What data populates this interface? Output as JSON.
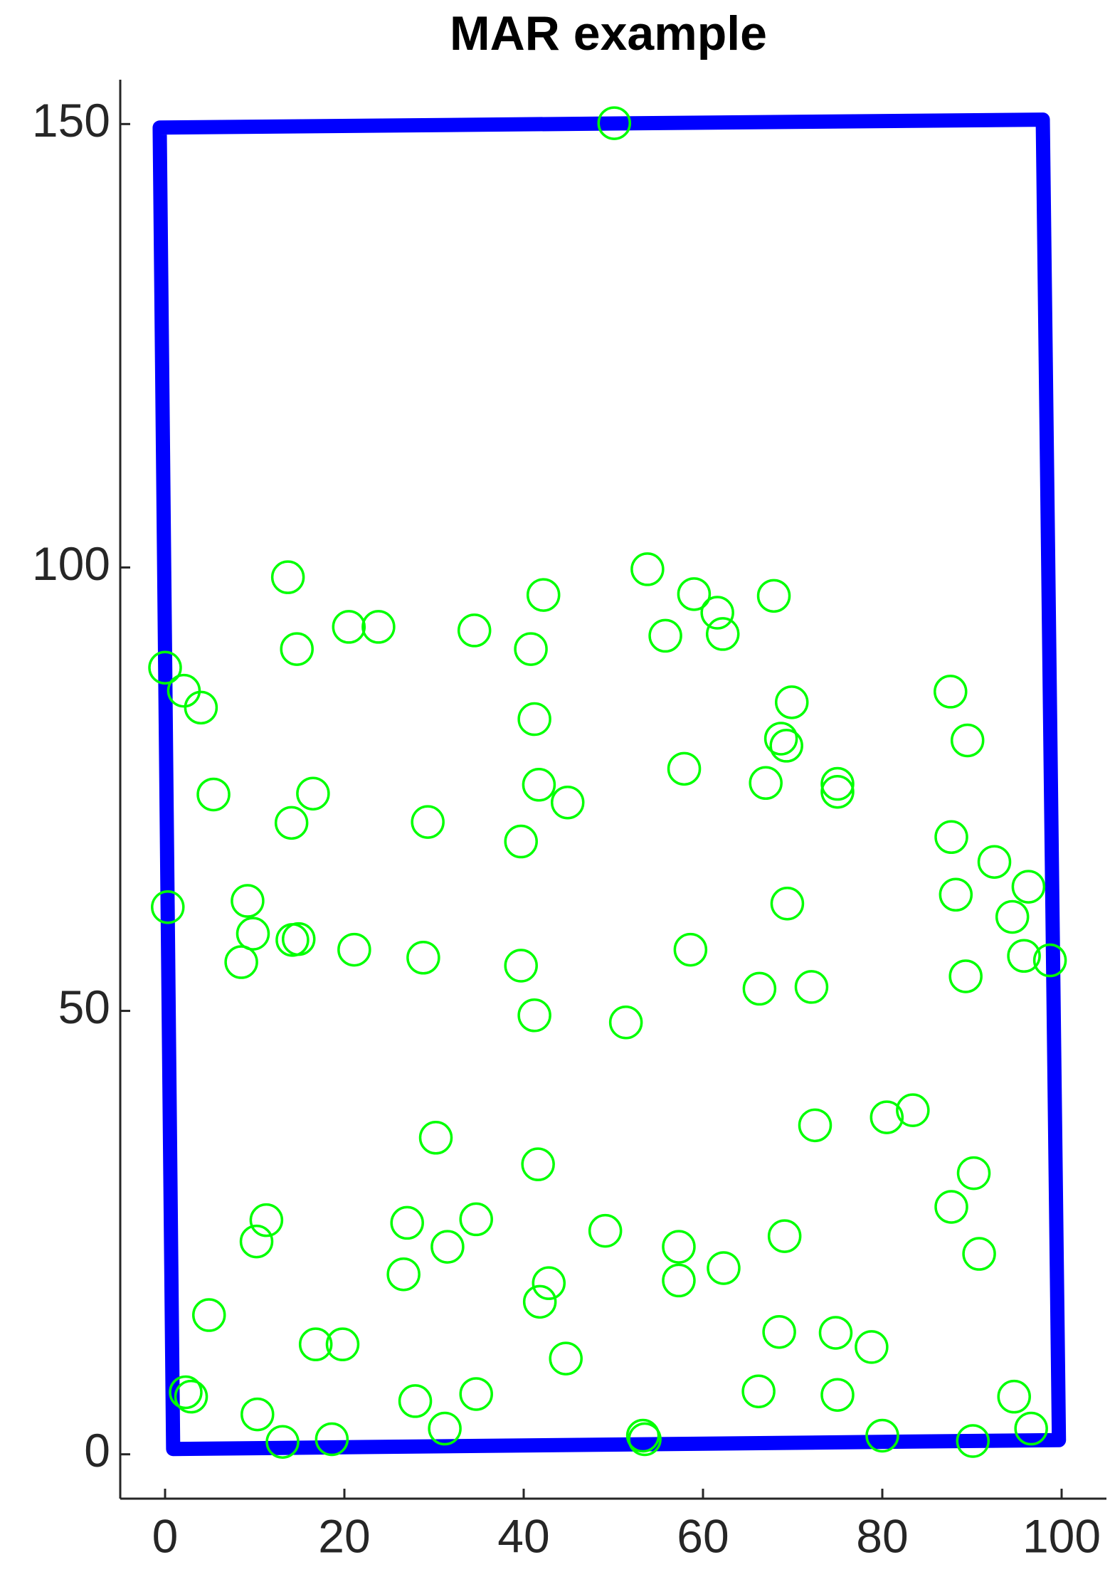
{
  "chart_data": {
    "type": "scatter",
    "title": "MAR example",
    "xlim": [
      -5,
      105
    ],
    "ylim": [
      -5,
      155
    ],
    "xticks": [
      0,
      20,
      40,
      60,
      80,
      100
    ],
    "yticks": [
      0,
      50,
      100,
      150
    ],
    "points": {
      "color": "#00ff00",
      "x": [
        50.1,
        0,
        2.1,
        4.0,
        0.3,
        5.4,
        13.7,
        14.7,
        20.5,
        23.8,
        34.5,
        40.8,
        42.2,
        41.2,
        41.7,
        44.9,
        39.7,
        29.3,
        16.5,
        14.1,
        9.2,
        9.8,
        8.5,
        14.2,
        14.9,
        21.1,
        28.8,
        39.7,
        41.2,
        51.4,
        53.8,
        55.8,
        59.0,
        61.6,
        62.2,
        67.9,
        69.9,
        68.7,
        69.3,
        57.9,
        67.0,
        75.0,
        75.0,
        69.4,
        58.6,
        66.3,
        72.1,
        87.6,
        89.5,
        87.7,
        92.5,
        96.3,
        88.2,
        94.5,
        95.8,
        98.7,
        89.3,
        30.2,
        41.6,
        11.3,
        10.2,
        27.0,
        34.7,
        31.5,
        26.6,
        49.1,
        42.8,
        41.8,
        57.3,
        57.3,
        62.3,
        69.1,
        72.5,
        80.5,
        83.4,
        90.2,
        87.7,
        90.8,
        4.9,
        16.8,
        19.8,
        44.7,
        68.5,
        74.8,
        78.8,
        2.3,
        2.9,
        10.3,
        13.1,
        18.6,
        27.9,
        31.2,
        34.7,
        53.3,
        53.5,
        66.2,
        75.0,
        80.0,
        90.1,
        94.7,
        96.6
      ],
      "y": [
        150.1,
        88.7,
        86.1,
        84.2,
        61.7,
        74.4,
        98.9,
        90.8,
        93.3,
        93.3,
        92.9,
        90.8,
        96.9,
        82.9,
        75.5,
        73.5,
        69.1,
        71.3,
        74.5,
        71.2,
        62.4,
        58.7,
        55.5,
        58.0,
        58.1,
        56.9,
        56.0,
        55.1,
        49.5,
        48.7,
        99.8,
        92.3,
        97.0,
        94.9,
        92.5,
        96.8,
        84.8,
        80.7,
        79.9,
        77.3,
        75.7,
        75.6,
        74.7,
        62.1,
        56.9,
        52.5,
        52.7,
        86.0,
        80.5,
        69.6,
        66.8,
        64.0,
        63.1,
        60.6,
        56.2,
        55.7,
        53.9,
        35.7,
        32.7,
        26.4,
        24.0,
        26.1,
        26.5,
        23.4,
        20.3,
        25.2,
        19.3,
        17.2,
        23.4,
        19.6,
        21.0,
        24.6,
        37.1,
        38.0,
        38.8,
        31.7,
        27.9,
        22.6,
        15.7,
        12.4,
        12.4,
        10.8,
        13.8,
        13.7,
        12.1,
        7.0,
        6.5,
        4.5,
        1.4,
        1.7,
        6.0,
        2.9,
        6.8,
        2.1,
        1.7,
        7.1,
        6.7,
        2.1,
        1.5,
        6.5,
        2.9
      ]
    },
    "boundary": {
      "color": "#0000ff",
      "x": [
        -0.6,
        97.9,
        99.7,
        0.9
      ],
      "y": [
        149.6,
        150.5,
        1.6,
        0.6
      ]
    }
  }
}
